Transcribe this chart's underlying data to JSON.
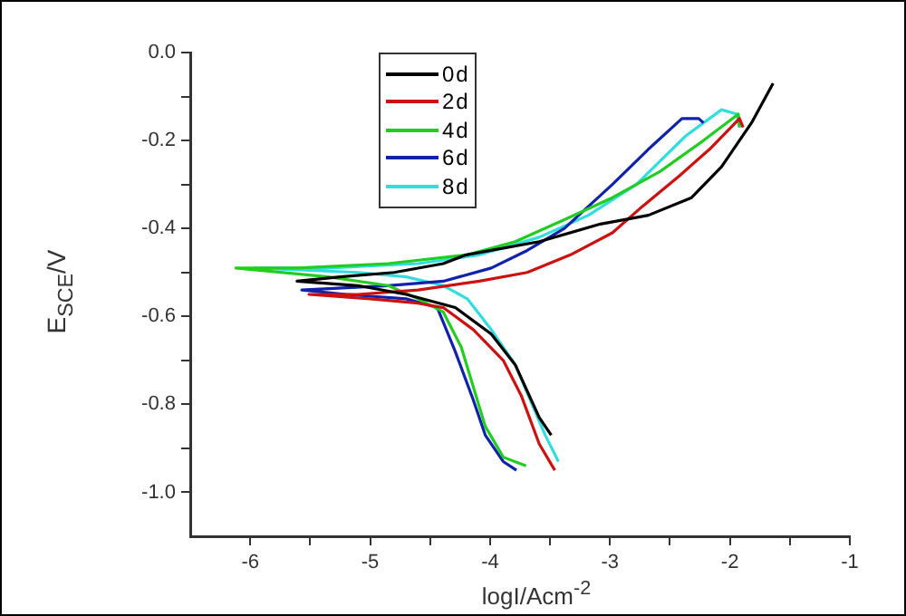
{
  "chart_data": {
    "type": "line",
    "xlabel": "logI/Acm$^{-2}$",
    "ylabel": "E$_{SCE}$/V",
    "xlim": [
      -6.5,
      -1
    ],
    "xticks": [
      -6,
      {
        "value": -5.5,
        "label": null
      },
      -5,
      {
        "value": -4.5,
        "label": null
      },
      -4,
      {
        "value": -3.5,
        "label": null
      },
      -3,
      {
        "value": -2.5,
        "label": null
      },
      -2,
      {
        "value": -1.5,
        "label": null
      },
      -1
    ],
    "ylim": [
      -1.1,
      0
    ],
    "yticks": [
      {
        "value": 0,
        "label": "0.0"
      },
      {
        "value": -0.1,
        "label": null
      },
      {
        "value": -0.2,
        "label": "-0.2"
      },
      {
        "value": -0.3,
        "label": null
      },
      {
        "value": -0.4,
        "label": "-0.4"
      },
      {
        "value": -0.5,
        "label": null
      },
      {
        "value": -0.6,
        "label": "-0.6"
      },
      {
        "value": -0.7,
        "label": null
      },
      {
        "value": -0.8,
        "label": "-0.8"
      },
      {
        "value": -0.9,
        "label": null
      },
      {
        "value": -1,
        "label": "-1.0"
      }
    ],
    "grid": false,
    "legend": "top",
    "marker": "none",
    "line_style": "solid",
    "series": [
      {
        "name": "0d",
        "color": "#000000",
        "x": [
          -3.49,
          -3.59,
          -3.79,
          -3.99,
          -4.29,
          -4.7,
          -5.1,
          -5.61,
          -5.25,
          -4.8,
          -4.39,
          -4.2,
          -3.59,
          -3.08,
          -2.68,
          -2.32,
          -2.07,
          -1.82,
          -1.64
        ],
        "values": [
          -0.87,
          -0.83,
          -0.71,
          -0.64,
          -0.58,
          -0.55,
          -0.53,
          -0.52,
          -0.51,
          -0.5,
          -0.48,
          -0.46,
          -0.43,
          -0.39,
          -0.37,
          -0.33,
          -0.26,
          -0.16,
          -0.07
        ]
      },
      {
        "name": "2d",
        "color": "#cc1111",
        "x": [
          -3.46,
          -3.59,
          -3.74,
          -3.89,
          -4.14,
          -4.39,
          -4.6,
          -5.0,
          -5.51,
          -5.1,
          -4.6,
          -4.09,
          -3.69,
          -3.33,
          -2.98,
          -2.73,
          -2.42,
          -2.17,
          -1.92,
          -1.89
        ],
        "values": [
          -0.95,
          -0.89,
          -0.78,
          -0.7,
          -0.63,
          -0.58,
          -0.57,
          -0.56,
          -0.55,
          -0.55,
          -0.54,
          -0.52,
          -0.5,
          -0.46,
          -0.41,
          -0.35,
          -0.28,
          -0.22,
          -0.15,
          -0.17
        ]
      },
      {
        "name": "4d",
        "color": "#22cc22",
        "x": [
          -3.7,
          -3.89,
          -4.04,
          -4.14,
          -4.24,
          -4.39,
          -4.6,
          -4.85,
          -5.35,
          -6.12,
          -5.61,
          -4.85,
          -4.19,
          -3.79,
          -3.38,
          -2.98,
          -2.58,
          -2.22,
          -1.93,
          -1.92
        ],
        "values": [
          -0.94,
          -0.92,
          -0.85,
          -0.76,
          -0.67,
          -0.59,
          -0.56,
          -0.53,
          -0.51,
          -0.49,
          -0.49,
          -0.48,
          -0.46,
          -0.43,
          -0.38,
          -0.33,
          -0.27,
          -0.2,
          -0.14,
          -0.17
        ]
      },
      {
        "name": "6d",
        "color": "#1122aa",
        "x": [
          -3.78,
          -3.89,
          -4.04,
          -4.14,
          -4.29,
          -4.44,
          -4.7,
          -5.2,
          -5.57,
          -4.85,
          -4.39,
          -3.99,
          -3.69,
          -3.38,
          -2.98,
          -2.68,
          -2.4,
          -2.26,
          -2.22
        ],
        "values": [
          -0.95,
          -0.93,
          -0.87,
          -0.79,
          -0.68,
          -0.58,
          -0.56,
          -0.55,
          -0.54,
          -0.53,
          -0.52,
          -0.49,
          -0.45,
          -0.4,
          -0.3,
          -0.22,
          -0.15,
          -0.15,
          -0.16
        ]
      },
      {
        "name": "8d",
        "color": "#33dddd",
        "x": [
          -3.43,
          -3.54,
          -3.79,
          -3.99,
          -4.19,
          -4.39,
          -4.7,
          -5.1,
          -5.96,
          -5.35,
          -4.6,
          -4.09,
          -3.59,
          -3.18,
          -2.78,
          -2.37,
          -2.07,
          -1.94,
          -1.92
        ],
        "values": [
          -0.93,
          -0.87,
          -0.71,
          -0.63,
          -0.56,
          -0.53,
          -0.51,
          -0.5,
          -0.49,
          -0.49,
          -0.48,
          -0.46,
          -0.42,
          -0.37,
          -0.3,
          -0.19,
          -0.13,
          -0.14,
          -0.17
        ]
      }
    ]
  }
}
